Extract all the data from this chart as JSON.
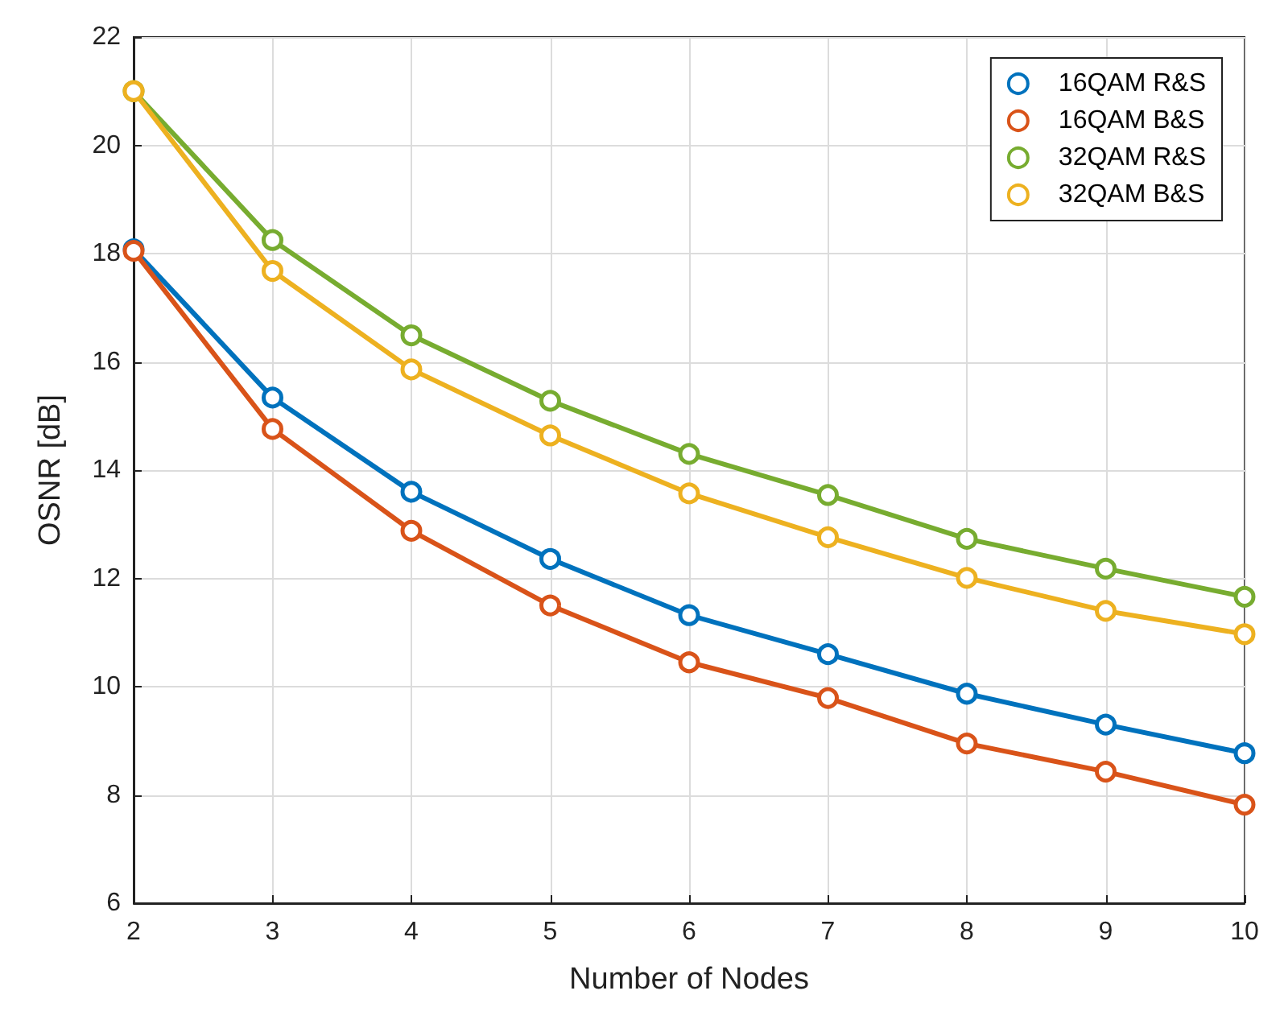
{
  "chart_data": {
    "type": "line",
    "xlabel": "Number of Nodes",
    "ylabel": "OSNR [dB]",
    "x": [
      2,
      3,
      4,
      5,
      6,
      7,
      8,
      9,
      10
    ],
    "series": [
      {
        "name": "16QAM R&S",
        "color": "#0072bd",
        "values": [
          18.08,
          15.34,
          13.6,
          12.36,
          11.32,
          10.6,
          9.87,
          9.3,
          8.77
        ]
      },
      {
        "name": "16QAM B&S",
        "color": "#d95319",
        "values": [
          18.05,
          14.76,
          12.88,
          11.5,
          10.45,
          9.79,
          8.95,
          8.43,
          7.82
        ]
      },
      {
        "name": "32QAM R&S",
        "color": "#77ac30",
        "values": [
          21.0,
          18.25,
          16.49,
          15.28,
          14.3,
          13.54,
          12.73,
          12.18,
          11.66
        ]
      },
      {
        "name": "32QAM B&S",
        "color": "#edb120",
        "values": [
          21.0,
          17.68,
          15.86,
          14.64,
          13.57,
          12.76,
          12.01,
          11.4,
          10.97
        ]
      }
    ],
    "xlim": [
      2,
      10
    ],
    "xticks": [
      2,
      3,
      4,
      5,
      6,
      7,
      8,
      9,
      10
    ],
    "ylim": [
      6,
      22
    ],
    "yticks": [
      6,
      8,
      10,
      12,
      14,
      16,
      18,
      20,
      22
    ],
    "grid": true,
    "legend": "top right",
    "marker": "circle",
    "line_style": "solid"
  }
}
